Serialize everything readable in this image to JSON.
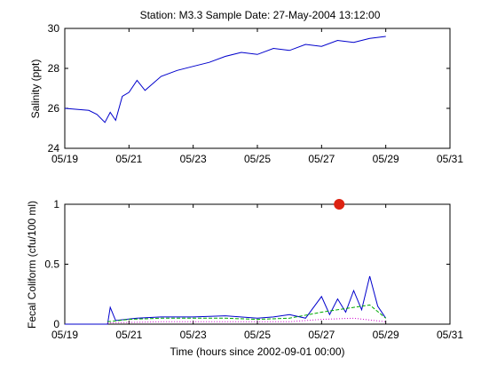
{
  "title": "Station: M3.3  Sample Date: 27-May-2004 13:12:00",
  "colors": {
    "series_primary": "#0000cc",
    "series_secondary": "#00aa00",
    "series_tertiary": "#cc00cc",
    "sample_marker": "#dd2211"
  },
  "chart_data": [
    {
      "type": "line",
      "ylabel": "Salinity (ppt)",
      "xlabel": "",
      "xlim": [
        "05/19",
        "05/31"
      ],
      "ylim": [
        24,
        30
      ],
      "x_ticks": [
        "05/19",
        "05/21",
        "05/23",
        "05/25",
        "05/27",
        "05/29",
        "05/31"
      ],
      "y_ticks": [
        "24",
        "26",
        "28",
        "30"
      ],
      "grid": false,
      "series": [
        {
          "color": "#0000cc",
          "x": [
            "05/19 00:00",
            "05/19 18:00",
            "05/20 00:00",
            "05/20 06:00",
            "05/20 10:00",
            "05/20 14:00",
            "05/20 19:00",
            "05/21 00:00",
            "05/21 06:00",
            "05/21 12:00",
            "05/22 00:00",
            "05/22 12:00",
            "05/23 00:00",
            "05/23 12:00",
            "05/24 00:00",
            "05/24 12:00",
            "05/25 00:00",
            "05/25 12:00",
            "05/26 00:00",
            "05/26 12:00",
            "05/27 00:00",
            "05/27 12:00",
            "05/28 00:00",
            "05/28 12:00",
            "05/29 00:00"
          ],
          "y": [
            26.0,
            25.9,
            25.7,
            25.3,
            25.8,
            25.4,
            26.6,
            26.8,
            27.4,
            26.9,
            27.6,
            27.9,
            28.1,
            28.3,
            28.6,
            28.8,
            28.7,
            29.0,
            28.9,
            29.2,
            29.1,
            29.4,
            29.3,
            29.5,
            29.6
          ]
        }
      ]
    },
    {
      "type": "line",
      "ylabel": "Fecal Coliform (cfu/100 ml)",
      "xlabel": "Time (hours since 2002-09-01 00:00)",
      "xlim": [
        "05/19",
        "05/31"
      ],
      "ylim": [
        0,
        1
      ],
      "x_ticks": [
        "05/19",
        "05/21",
        "05/23",
        "05/25",
        "05/27",
        "05/29",
        "05/31"
      ],
      "y_ticks": [
        "0",
        "0.5",
        "1"
      ],
      "grid": false,
      "series": [
        {
          "color": "#0000cc",
          "x": [
            "05/19 00:00",
            "05/20 08:00",
            "05/20 10:00",
            "05/20 14:00",
            "05/21 06:00",
            "05/22 00:00",
            "05/23 00:00",
            "05/24 00:00",
            "05/25 00:00",
            "05/25 12:00",
            "05/26 00:00",
            "05/26 12:00",
            "05/27 00:00",
            "05/27 06:00",
            "05/27 12:00",
            "05/27 18:00",
            "05/28 00:00",
            "05/28 06:00",
            "05/28 12:00",
            "05/28 18:00",
            "05/29 00:00"
          ],
          "y": [
            0.0,
            0.0,
            0.14,
            0.03,
            0.05,
            0.06,
            0.06,
            0.07,
            0.05,
            0.06,
            0.08,
            0.05,
            0.23,
            0.08,
            0.21,
            0.1,
            0.28,
            0.12,
            0.4,
            0.15,
            0.05
          ]
        },
        {
          "color": "#00aa00",
          "style": "dashed",
          "x": [
            "05/20 08:00",
            "05/21 00:00",
            "05/22 00:00",
            "05/23 00:00",
            "05/24 00:00",
            "05/25 00:00",
            "05/26 00:00",
            "05/27 00:00",
            "05/27 12:00",
            "05/28 00:00",
            "05/28 12:00",
            "05/29 00:00"
          ],
          "y": [
            0.02,
            0.04,
            0.05,
            0.05,
            0.05,
            0.04,
            0.05,
            0.1,
            0.12,
            0.14,
            0.16,
            0.05
          ]
        },
        {
          "color": "#cc00cc",
          "style": "dotted",
          "x": [
            "05/20 08:00",
            "05/22 00:00",
            "05/24 00:00",
            "05/26 00:00",
            "05/27 00:00",
            "05/28 00:00",
            "05/29 00:00"
          ],
          "y": [
            0.01,
            0.02,
            0.02,
            0.02,
            0.04,
            0.05,
            0.02
          ]
        }
      ],
      "sample": {
        "x": "05/27 13:12",
        "y": 1.0,
        "color": "#dd2211"
      }
    }
  ]
}
